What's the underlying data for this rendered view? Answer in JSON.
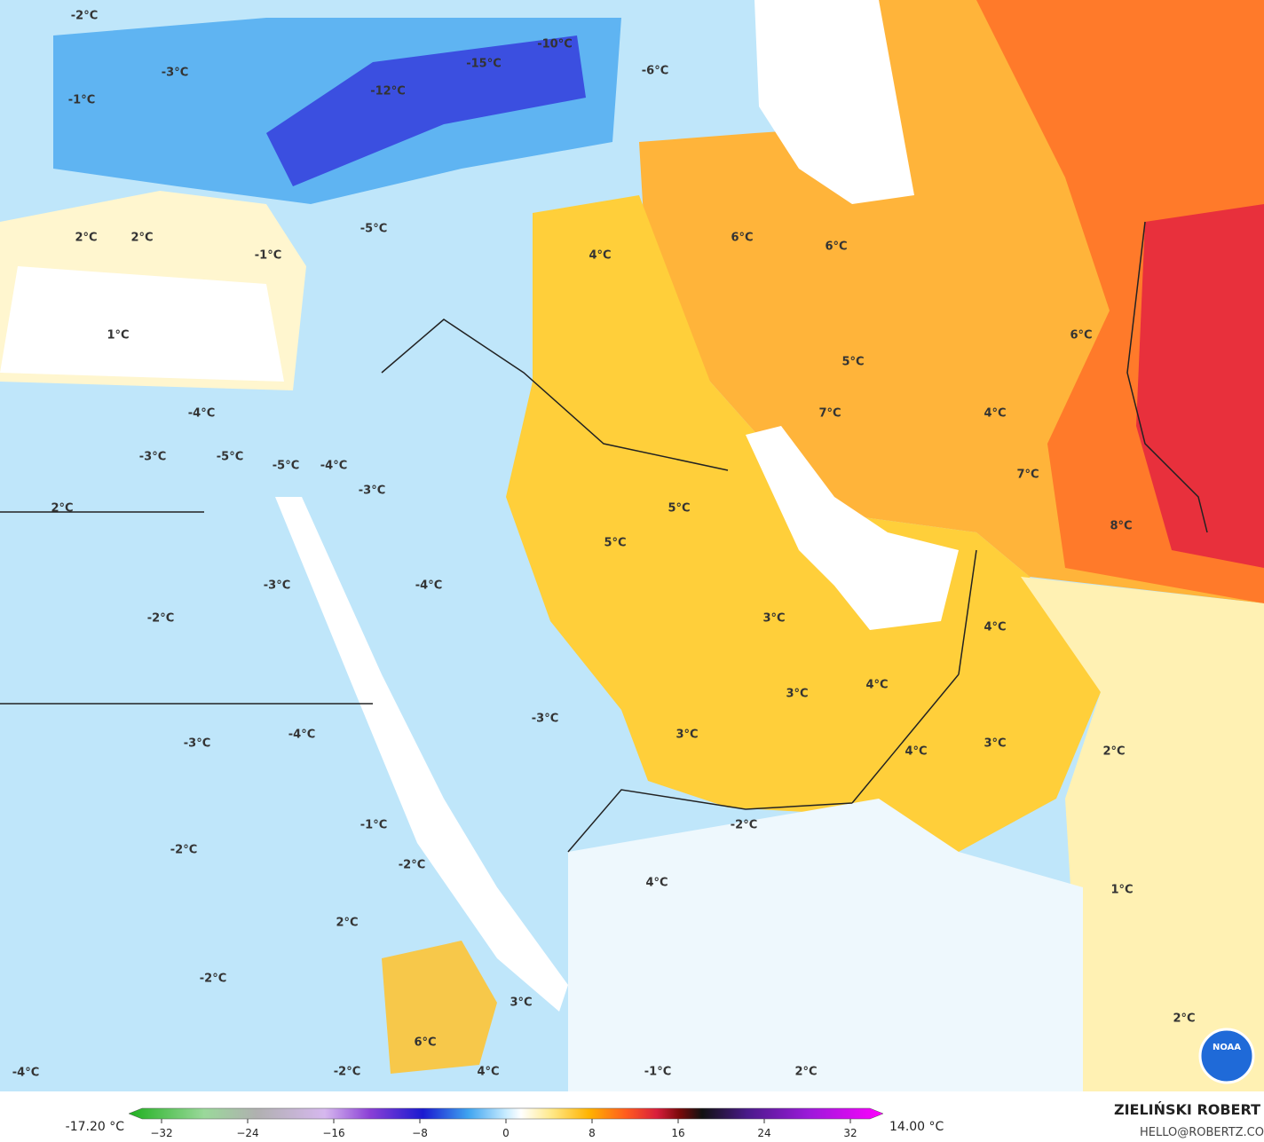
{
  "map": {
    "labels": [
      "-2°C",
      "-10°C",
      "-15°C",
      "-6°C",
      "-3°C",
      "-12°C",
      "-1°C",
      "2°C",
      "2°C",
      "-5°C",
      "-1°C",
      "4°C",
      "6°C",
      "6°C",
      "1°C",
      "6°C",
      "5°C",
      "7°C",
      "4°C",
      "-4°C",
      "-3°C",
      "-5°C",
      "-5°C",
      "-4°C",
      "-3°C",
      "7°C",
      "2°C",
      "5°C",
      "5°C",
      "8°C",
      "-3°C",
      "-4°C",
      "-2°C",
      "3°C",
      "4°C",
      "4°C",
      "3°C",
      "-3°C",
      "3°C",
      "-3°C",
      "-4°C",
      "3°C",
      "4°C",
      "2°C",
      "-1°C",
      "-2°C",
      "-2°C",
      "-2°C",
      "4°C",
      "1°C",
      "2°C",
      "-2°C",
      "3°C",
      "2°C",
      "6°C",
      "-4°C",
      "-2°C",
      "4°C",
      "-1°C",
      "2°C"
    ],
    "logo": "NOAA"
  },
  "colorbar": {
    "min_label": "-17.20 °C",
    "max_label": "14.00 °C",
    "xlim": [
      -32,
      32
    ],
    "ticks": [
      {
        "value": -32,
        "label": "−32"
      },
      {
        "value": -24,
        "label": "−24"
      },
      {
        "value": -16,
        "label": "−16"
      },
      {
        "value": -8,
        "label": "−8"
      },
      0,
      8,
      16,
      24,
      32
    ]
  },
  "credits": {
    "name": "ZIELIŃSKI ROBERT",
    "email": "HELLO@ROBERTZ.CO"
  }
}
